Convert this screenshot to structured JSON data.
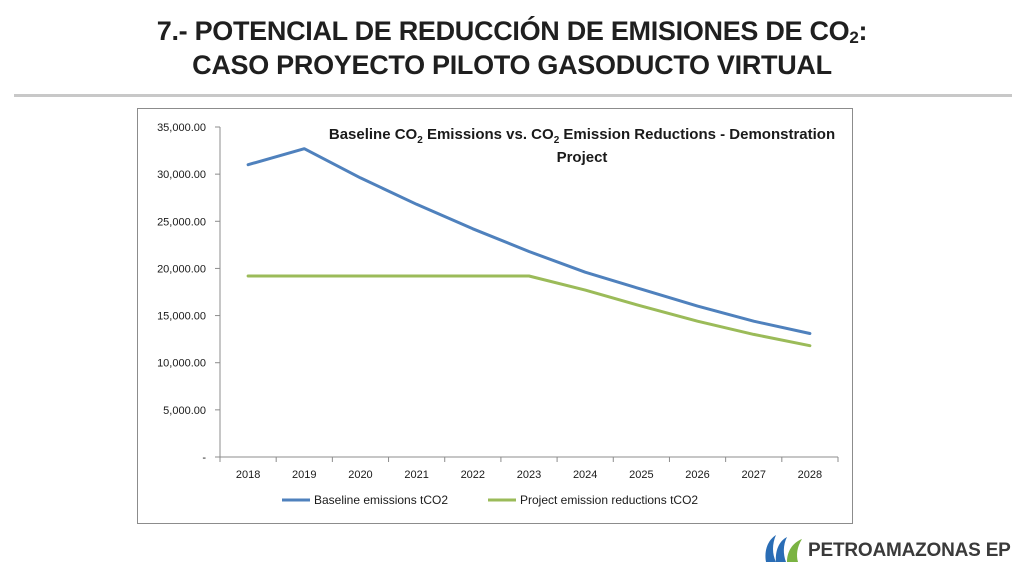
{
  "slide": {
    "title_line1_main": "7.- POTENCIAL DE REDUCCIÓN DE EMISIONES DE CO",
    "title_line1_sub": "2",
    "title_line1_end": ":",
    "title_line2": "CASO PROYECTO PILOTO GASODUCTO VIRTUAL"
  },
  "chart_data": {
    "type": "line",
    "title_parts": [
      "Baseline CO",
      "2",
      " Emissions vs. CO",
      "2",
      " Emission Reductions - Demonstration",
      "Project"
    ],
    "categories": [
      "2018",
      "2019",
      "2020",
      "2021",
      "2022",
      "2023",
      "2024",
      "2025",
      "2026",
      "2027",
      "2028"
    ],
    "y_ticks": [
      "-",
      "5,000.00",
      "10,000.00",
      "15,000.00",
      "20,000.00",
      "25,000.00",
      "30,000.00",
      "35,000.00"
    ],
    "ylim": [
      0,
      35000
    ],
    "grid": false,
    "legend_position": "bottom",
    "series": [
      {
        "name": "Baseline emissions tCO2",
        "color": "#4f81bd",
        "values": [
          31000,
          32700,
          29600,
          26800,
          24200,
          21800,
          19600,
          17800,
          16000,
          14400,
          13100
        ]
      },
      {
        "name": "Project emission reductions tCO2",
        "color": "#9bbb59",
        "values": [
          19200,
          19200,
          19200,
          19200,
          19200,
          19200,
          17700,
          16000,
          14400,
          13000,
          11800
        ]
      }
    ]
  },
  "footer": {
    "logo_text": "PETROAMAZONAS EP",
    "logo_colors": [
      "#2a6db5",
      "#7ab342"
    ]
  }
}
